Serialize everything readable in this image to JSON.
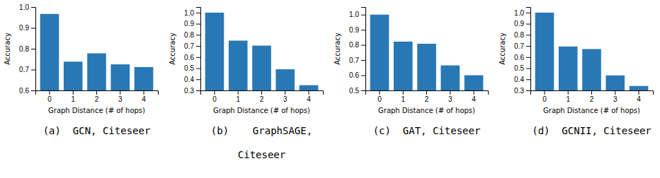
{
  "chart_data": [
    {
      "type": "bar",
      "title": "(a)  GCN, Citeseer",
      "xlabel": "Graph Distance (# of hops)",
      "ylabel": "Accuracy",
      "categories": [
        "0",
        "1",
        "2",
        "3",
        "4"
      ],
      "values": [
        0.967,
        0.738,
        0.778,
        0.725,
        0.712
      ],
      "color": "#2878b5",
      "ylim": [
        0.6,
        1.0
      ],
      "yticks": [
        0.6,
        0.7,
        0.8,
        0.9,
        {
          "value": 1.0,
          "label": "1.0"
        }
      ]
    },
    {
      "type": "bar",
      "title": "(b)    GraphSAGE,",
      "subtitle": "Citeseer",
      "xlabel": "Graph Distance (# of hops)",
      "ylabel": "Accuracy",
      "categories": [
        "0",
        "1",
        "2",
        "3",
        "4"
      ],
      "values": [
        1.0,
        0.748,
        0.703,
        0.49,
        0.347
      ],
      "color": "#2878b5",
      "ylim": [
        0.3,
        1.05
      ],
      "yticks": [
        0.3,
        0.4,
        0.5,
        0.6,
        0.7,
        0.8,
        0.9,
        {
          "value": 1.0,
          "label": "1.0"
        }
      ]
    },
    {
      "type": "bar",
      "title": "(c)  GAT, Citeseer",
      "xlabel": "Graph Distance (# of hops)",
      "ylabel": "Accuracy",
      "categories": [
        "0",
        "1",
        "2",
        "3",
        "4"
      ],
      "values": [
        1.0,
        0.822,
        0.808,
        0.665,
        0.6
      ],
      "color": "#2878b5",
      "ylim": [
        0.5,
        1.05
      ],
      "yticks": [
        0.5,
        0.6,
        0.7,
        0.8,
        0.9,
        {
          "value": 1.0,
          "label": "1.0"
        }
      ]
    },
    {
      "type": "bar",
      "title": "(d)  GCNII, Citeseer",
      "xlabel": "Graph Distance (# of hops)",
      "ylabel": "Accuracy",
      "categories": [
        "0",
        "1",
        "2",
        "3",
        "4"
      ],
      "values": [
        1.0,
        0.695,
        0.672,
        0.435,
        0.34
      ],
      "color": "#2878b5",
      "ylim": [
        0.3,
        1.05
      ],
      "yticks": [
        0.3,
        0.4,
        0.5,
        0.6,
        0.7,
        0.8,
        0.9,
        {
          "value": 1.0,
          "label": "1.0"
        }
      ]
    }
  ]
}
